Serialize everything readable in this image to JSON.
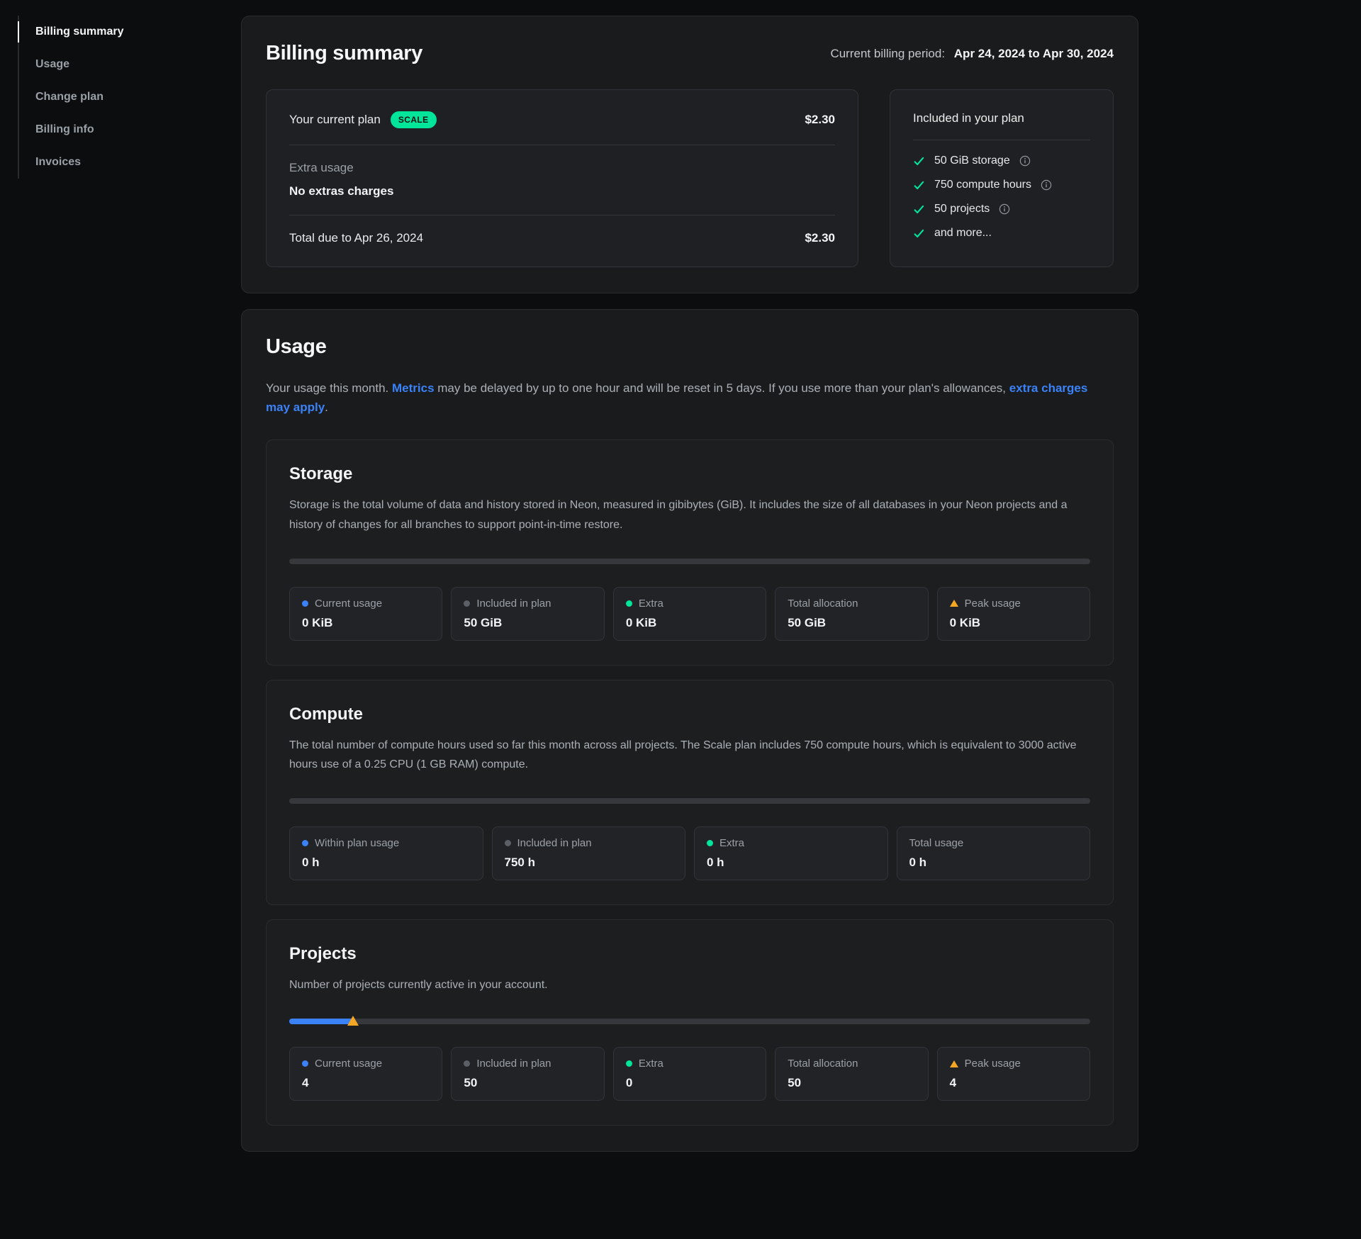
{
  "colors": {
    "accent_green": "#00e599",
    "link_blue": "#3b82f6",
    "dot_blue": "#3b82f6",
    "dot_gray": "#5c6066",
    "dot_green": "#00e599",
    "peak_orange": "#f5a623"
  },
  "sidebar": {
    "items": [
      {
        "label": "Billing summary",
        "active": true
      },
      {
        "label": "Usage",
        "active": false
      },
      {
        "label": "Change plan",
        "active": false
      },
      {
        "label": "Billing info",
        "active": false
      },
      {
        "label": "Invoices",
        "active": false
      }
    ]
  },
  "billing_summary": {
    "title": "Billing summary",
    "billing_period_label": "Current billing period:",
    "billing_period_value": "Apr 24, 2024 to Apr 30, 2024",
    "plan_row": {
      "label": "Your current plan",
      "badge": "SCALE",
      "amount": "$2.30"
    },
    "extra_usage_label": "Extra usage",
    "extra_usage_value": "No extras charges",
    "total_row": {
      "label": "Total due to Apr 26, 2024",
      "amount": "$2.30"
    },
    "included": {
      "title": "Included in your plan",
      "items": [
        {
          "label": "50 GiB storage",
          "has_info": true
        },
        {
          "label": "750 compute hours",
          "has_info": true
        },
        {
          "label": "50 projects",
          "has_info": true
        },
        {
          "label": "and more...",
          "has_info": false
        }
      ]
    }
  },
  "usage": {
    "title": "Usage",
    "intro": {
      "part1": "Your usage this month. ",
      "link1": "Metrics",
      "part2": " may be delayed by up to one hour and will be reset in 5 days. If you use more than your plan's allowances, ",
      "link2": "extra charges may apply",
      "part3": "."
    },
    "sections": [
      {
        "title": "Storage",
        "description": "Storage is the total volume of data and history stored in Neon, measured in gibibytes (GiB). It includes the size of all databases in your Neon projects and a history of changes for all branches to support point-in-time restore.",
        "progress_percent": 0,
        "stats": [
          {
            "label": "Current usage",
            "value": "0 KiB",
            "marker": "blue-dot"
          },
          {
            "label": "Included in plan",
            "value": "50 GiB",
            "marker": "gray-dot"
          },
          {
            "label": "Extra",
            "value": "0 KiB",
            "marker": "green-dot"
          },
          {
            "label": "Total allocation",
            "value": "50 GiB",
            "marker": "none"
          },
          {
            "label": "Peak usage",
            "value": "0 KiB",
            "marker": "orange-triangle"
          }
        ]
      },
      {
        "title": "Compute",
        "description": "The total number of compute hours used so far this month across all projects. The Scale plan includes 750 compute hours, which is equivalent to 3000 active hours use of a 0.25 CPU (1 GB RAM) compute.",
        "progress_percent": 0,
        "stats": [
          {
            "label": "Within plan usage",
            "value": "0 h",
            "marker": "blue-dot"
          },
          {
            "label": "Included in plan",
            "value": "750 h",
            "marker": "gray-dot"
          },
          {
            "label": "Extra",
            "value": "0 h",
            "marker": "green-dot"
          },
          {
            "label": "Total usage",
            "value": "0 h",
            "marker": "none"
          }
        ]
      },
      {
        "title": "Projects",
        "description": "Number of projects currently active in your account.",
        "progress_percent": 8,
        "peak_percent": 8,
        "stats": [
          {
            "label": "Current usage",
            "value": "4",
            "marker": "blue-dot"
          },
          {
            "label": "Included in plan",
            "value": "50",
            "marker": "gray-dot"
          },
          {
            "label": "Extra",
            "value": "0",
            "marker": "green-dot"
          },
          {
            "label": "Total allocation",
            "value": "50",
            "marker": "none"
          },
          {
            "label": "Peak usage",
            "value": "4",
            "marker": "orange-triangle"
          }
        ]
      }
    ]
  }
}
